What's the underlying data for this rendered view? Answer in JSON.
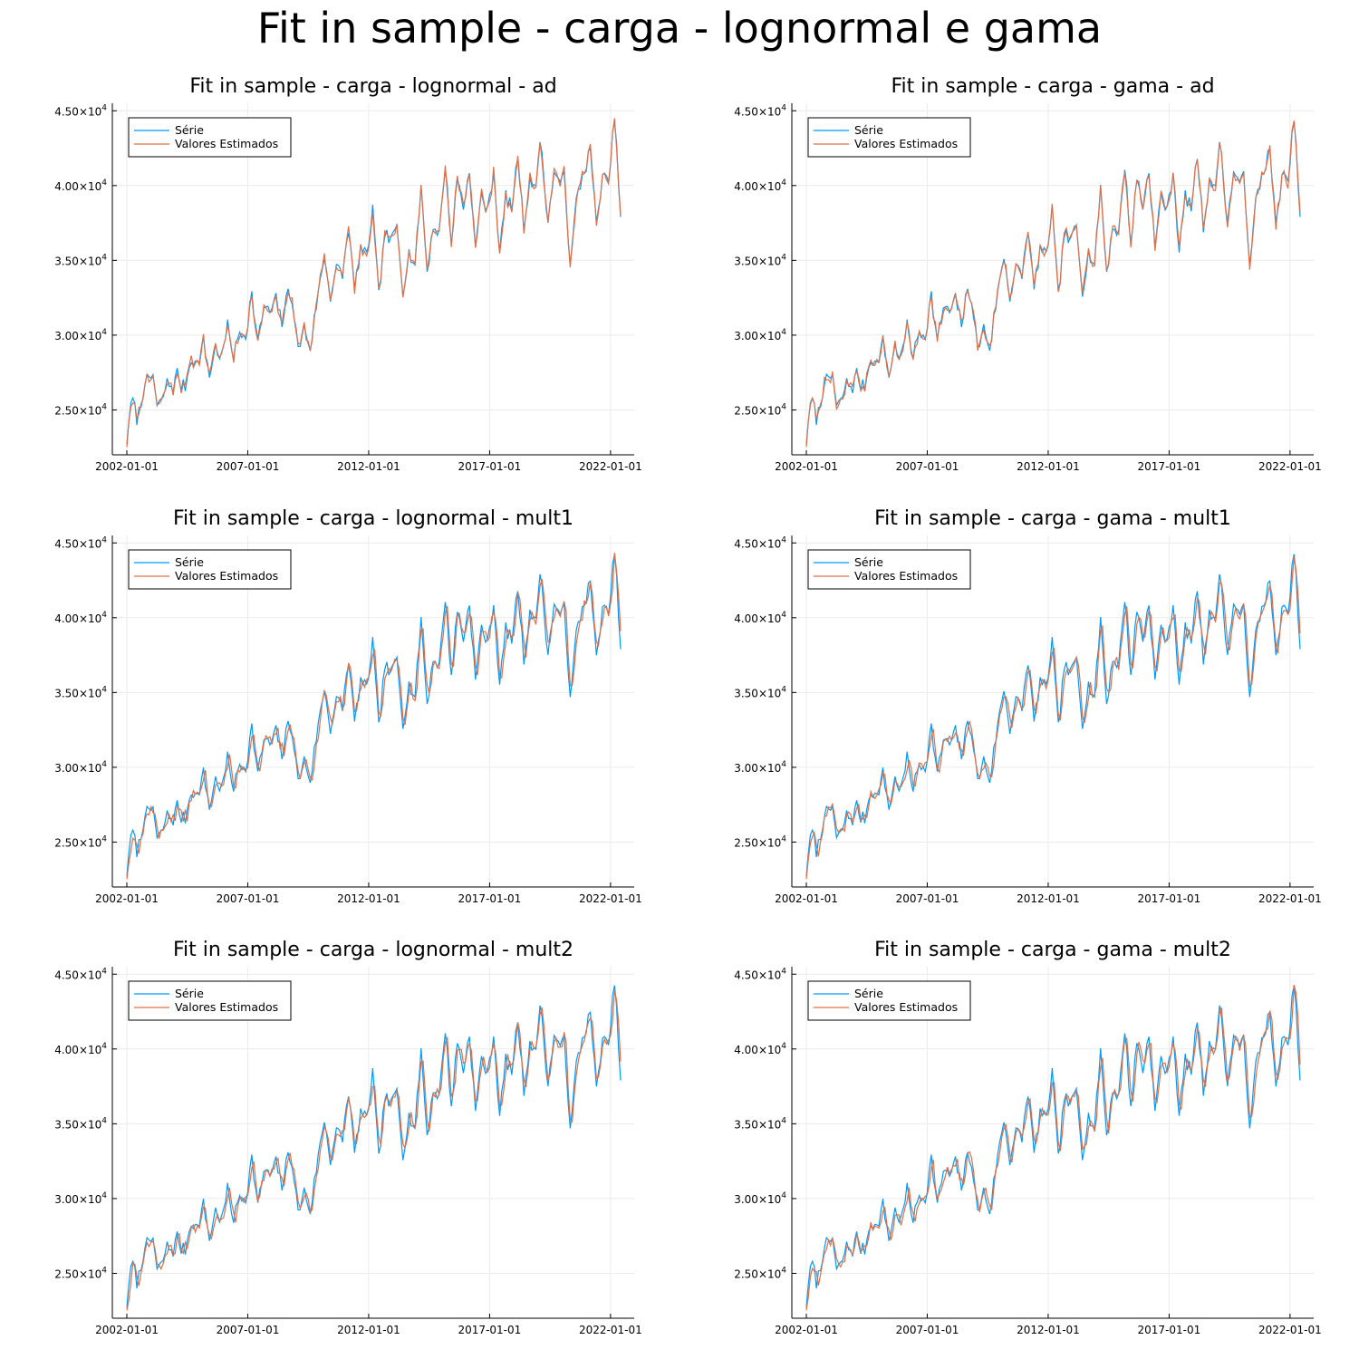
{
  "title": "Fit in sample - carga - lognormal e gama",
  "chart_data": [
    {
      "type": "line",
      "title": "Fit in sample - carga - lognormal - ad",
      "dist": "lognormal",
      "method": "ad",
      "seed": 11,
      "ylim": [
        22000,
        45500
      ],
      "x_ticks": [
        "2002-01-01",
        "2007-01-01",
        "2012-01-01",
        "2017-01-01",
        "2022-01-01"
      ],
      "y_ticks": [
        25000,
        30000,
        35000,
        40000,
        45000
      ],
      "y_tick_mantissas": [
        "2.50",
        "3.00",
        "3.50",
        "4.00",
        "4.50"
      ],
      "y_tick_exponent": "4",
      "legend_position": "top-left",
      "series": [
        {
          "name": "Série",
          "color": "#009af9",
          "values": "monthly load 2002-01 to 2022-06: ~22700 rising to ~44700 peak, ends ~37900"
        },
        {
          "name": "Valores Estimados",
          "color": "#e26f46",
          "values": "fitted values tracking Série"
        }
      ]
    },
    {
      "type": "line",
      "title": "Fit in sample - carga - gama - ad",
      "dist": "gama",
      "method": "ad",
      "seed": 23,
      "ylim": [
        22000,
        45500
      ],
      "x_ticks": [
        "2002-01-01",
        "2007-01-01",
        "2012-01-01",
        "2017-01-01",
        "2022-01-01"
      ],
      "y_ticks": [
        25000,
        30000,
        35000,
        40000,
        45000
      ],
      "y_tick_mantissas": [
        "2.50",
        "3.00",
        "3.50",
        "4.00",
        "4.50"
      ],
      "y_tick_exponent": "4",
      "legend_position": "top-left",
      "series": [
        {
          "name": "Série",
          "color": "#009af9"
        },
        {
          "name": "Valores Estimados",
          "color": "#e26f46"
        }
      ]
    },
    {
      "type": "line",
      "title": "Fit in sample - carga - lognormal - mult1",
      "dist": "lognormal",
      "method": "mult1",
      "seed": 37,
      "ylim": [
        22000,
        45500
      ],
      "x_ticks": [
        "2002-01-01",
        "2007-01-01",
        "2012-01-01",
        "2017-01-01",
        "2022-01-01"
      ],
      "y_ticks": [
        25000,
        30000,
        35000,
        40000,
        45000
      ],
      "y_tick_mantissas": [
        "2.50",
        "3.00",
        "3.50",
        "4.00",
        "4.50"
      ],
      "y_tick_exponent": "4",
      "legend_position": "top-left",
      "series": [
        {
          "name": "Série",
          "color": "#009af9"
        },
        {
          "name": "Valores Estimados",
          "color": "#e26f46"
        }
      ]
    },
    {
      "type": "line",
      "title": "Fit in sample - carga - gama - mult1",
      "dist": "gama",
      "method": "mult1",
      "seed": 41,
      "ylim": [
        22000,
        45500
      ],
      "x_ticks": [
        "2002-01-01",
        "2007-01-01",
        "2012-01-01",
        "2017-01-01",
        "2022-01-01"
      ],
      "y_ticks": [
        25000,
        30000,
        35000,
        40000,
        45000
      ],
      "y_tick_mantissas": [
        "2.50",
        "3.00",
        "3.50",
        "4.00",
        "4.50"
      ],
      "y_tick_exponent": "4",
      "legend_position": "top-left",
      "series": [
        {
          "name": "Série",
          "color": "#009af9"
        },
        {
          "name": "Valores Estimados",
          "color": "#e26f46"
        }
      ]
    },
    {
      "type": "line",
      "title": "Fit in sample - carga - lognormal - mult2",
      "dist": "lognormal",
      "method": "mult2",
      "seed": 53,
      "ylim": [
        22000,
        45500
      ],
      "x_ticks": [
        "2002-01-01",
        "2007-01-01",
        "2012-01-01",
        "2017-01-01",
        "2022-01-01"
      ],
      "y_ticks": [
        25000,
        30000,
        35000,
        40000,
        45000
      ],
      "y_tick_mantissas": [
        "2.50",
        "3.00",
        "3.50",
        "4.00",
        "4.50"
      ],
      "y_tick_exponent": "4",
      "legend_position": "top-left",
      "series": [
        {
          "name": "Série",
          "color": "#009af9"
        },
        {
          "name": "Valores Estimados",
          "color": "#e26f46"
        }
      ]
    },
    {
      "type": "line",
      "title": "Fit in sample - carga - gama - mult2",
      "dist": "gama",
      "method": "mult2",
      "seed": 67,
      "ylim": [
        22000,
        45500
      ],
      "x_ticks": [
        "2002-01-01",
        "2007-01-01",
        "2012-01-01",
        "2017-01-01",
        "2022-01-01"
      ],
      "y_ticks": [
        25000,
        30000,
        35000,
        40000,
        45000
      ],
      "y_tick_mantissas": [
        "2.50",
        "3.00",
        "3.50",
        "4.00",
        "4.50"
      ],
      "y_tick_exponent": "4",
      "legend_position": "top-left",
      "series": [
        {
          "name": "Série",
          "color": "#009af9"
        },
        {
          "name": "Valores Estimados",
          "color": "#e26f46"
        }
      ]
    }
  ],
  "series_data": {
    "start": "2002-01",
    "frequency": "monthly",
    "months": 246,
    "observed_anchors": [
      [
        "2002-01",
        22700
      ],
      [
        "2002-02",
        24500
      ],
      [
        "2002-04",
        25700
      ],
      [
        "2002-06",
        24400
      ],
      [
        "2002-08",
        25300
      ],
      [
        "2002-10",
        27100
      ],
      [
        "2002-12",
        26800
      ],
      [
        "2003-02",
        27400
      ],
      [
        "2003-04",
        25200
      ],
      [
        "2003-06",
        25500
      ],
      [
        "2003-09",
        26800
      ],
      [
        "2003-12",
        26500
      ],
      [
        "2004-02",
        27500
      ],
      [
        "2004-04",
        26600
      ],
      [
        "2004-06",
        26600
      ],
      [
        "2004-09",
        28500
      ],
      [
        "2004-12",
        28000
      ],
      [
        "2005-03",
        29600
      ],
      [
        "2005-06",
        27300
      ],
      [
        "2005-09",
        29200
      ],
      [
        "2005-12",
        28500
      ],
      [
        "2006-03",
        30600
      ],
      [
        "2006-06",
        28600
      ],
      [
        "2006-09",
        30200
      ],
      [
        "2006-12",
        30000
      ],
      [
        "2007-03",
        32700
      ],
      [
        "2007-06",
        29500
      ],
      [
        "2007-09",
        31900
      ],
      [
        "2007-12",
        31500
      ],
      [
        "2008-03",
        32400
      ],
      [
        "2008-06",
        30800
      ],
      [
        "2008-09",
        32900
      ],
      [
        "2008-11",
        32500
      ],
      [
        "2009-02",
        29000
      ],
      [
        "2009-05",
        30500
      ],
      [
        "2009-08",
        29100
      ],
      [
        "2009-11",
        32000
      ],
      [
        "2010-03",
        35300
      ],
      [
        "2010-06",
        32600
      ],
      [
        "2010-09",
        34500
      ],
      [
        "2010-12",
        34000
      ],
      [
        "2011-03",
        37200
      ],
      [
        "2011-06",
        33000
      ],
      [
        "2011-09",
        35800
      ],
      [
        "2011-12",
        35200
      ],
      [
        "2012-03",
        38400
      ],
      [
        "2012-06",
        32600
      ],
      [
        "2012-09",
        36800
      ],
      [
        "2012-12",
        36200
      ],
      [
        "2013-03",
        37300
      ],
      [
        "2013-06",
        33000
      ],
      [
        "2013-09",
        35500
      ],
      [
        "2013-12",
        34700
      ],
      [
        "2014-03",
        40000
      ],
      [
        "2014-06",
        34200
      ],
      [
        "2014-09",
        37300
      ],
      [
        "2014-12",
        36800
      ],
      [
        "2015-03",
        41400
      ],
      [
        "2015-06",
        36100
      ],
      [
        "2015-09",
        40500
      ],
      [
        "2015-12",
        38600
      ],
      [
        "2016-03",
        41000
      ],
      [
        "2016-06",
        35800
      ],
      [
        "2016-09",
        39500
      ],
      [
        "2016-12",
        38200
      ],
      [
        "2017-03",
        41000
      ],
      [
        "2017-06",
        35500
      ],
      [
        "2017-09",
        39300
      ],
      [
        "2017-12",
        38500
      ],
      [
        "2018-03",
        42000
      ],
      [
        "2018-06",
        37200
      ],
      [
        "2018-09",
        40500
      ],
      [
        "2018-12",
        39600
      ],
      [
        "2019-02",
        43300
      ],
      [
        "2019-06",
        37500
      ],
      [
        "2019-09",
        41000
      ],
      [
        "2019-12",
        39800
      ],
      [
        "2020-02",
        41300
      ],
      [
        "2020-05",
        34300
      ],
      [
        "2020-08",
        39000
      ],
      [
        "2020-11",
        40600
      ],
      [
        "2021-03",
        42400
      ],
      [
        "2021-06",
        37200
      ],
      [
        "2021-09",
        40800
      ],
      [
        "2021-12",
        40000
      ],
      [
        "2022-03",
        44700
      ],
      [
        "2022-06",
        37900
      ]
    ]
  }
}
